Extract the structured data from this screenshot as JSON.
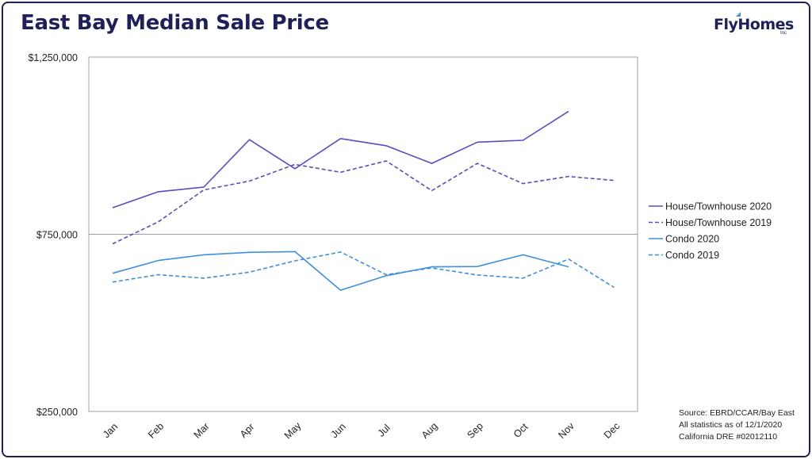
{
  "header": {
    "title": "East Bay Median Sale Price",
    "logo_text": "FlyHomes",
    "logo_suffix": "Inc"
  },
  "chart_data": {
    "type": "line",
    "title": "East Bay Median Sale Price",
    "xlabel": "",
    "ylabel": "",
    "categories": [
      "Jan",
      "Feb",
      "Mar",
      "Apr",
      "May",
      "Jun",
      "Jul",
      "Aug",
      "Sep",
      "Oct",
      "Nov",
      "Dec"
    ],
    "ylim": [
      250000,
      1250000
    ],
    "y_ticks": [
      {
        "value": 250000,
        "label": "$250,000"
      },
      {
        "value": 750000,
        "label": "$750,000"
      },
      {
        "value": 1250000,
        "label": "$1,250,000"
      }
    ],
    "grid": "horizontal line at $750,000",
    "legend_position": "right",
    "series": [
      {
        "name": "House/Townhouse 2020",
        "style": "solid",
        "color": "#5b4bc4",
        "values": [
          825000,
          870000,
          883000,
          1017000,
          935000,
          1020000,
          1000000,
          950000,
          1010000,
          1015000,
          1097000,
          null
        ]
      },
      {
        "name": "House/Townhouse 2019",
        "style": "dashed",
        "color": "#5b4bc4",
        "values": [
          723000,
          785000,
          875000,
          900000,
          947000,
          925000,
          957000,
          873000,
          950000,
          893000,
          913000,
          902000
        ]
      },
      {
        "name": "Condo 2020",
        "style": "solid",
        "color": "#3e8fe0",
        "values": [
          640000,
          676000,
          692000,
          699000,
          701000,
          592000,
          633000,
          658000,
          659000,
          692000,
          658000,
          null
        ]
      },
      {
        "name": "Condo 2019",
        "style": "dashed",
        "color": "#3e8fe0",
        "values": [
          615000,
          636000,
          626000,
          643000,
          675000,
          700000,
          636000,
          655000,
          635000,
          626000,
          680000,
          600000
        ]
      }
    ]
  },
  "source": {
    "line1": "Source: EBRD/CCAR/Bay East",
    "line2": "All statistics as of 12/1/2020",
    "line3": "California DRE #02012110"
  }
}
